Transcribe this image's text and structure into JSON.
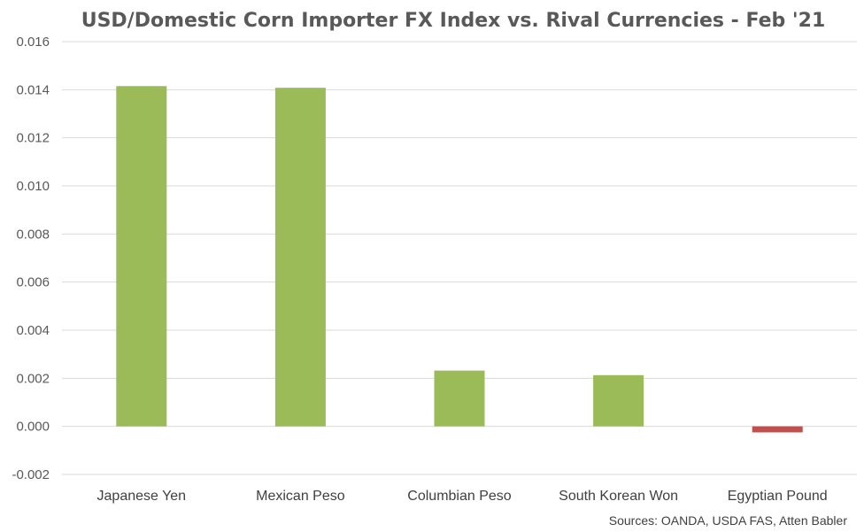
{
  "chart_data": {
    "type": "bar",
    "title": "USD/Domestic Corn Importer FX Index vs. Rival Currencies - Feb '21",
    "categories": [
      "Japanese Yen",
      "Mexican Peso",
      "Columbian Peso",
      "South Korean Won",
      "Egyptian Pound"
    ],
    "values": [
      0.01415,
      0.01408,
      0.00232,
      0.00213,
      -0.00025
    ],
    "ylim": [
      -0.002,
      0.016
    ],
    "yticks": [
      "0.016",
      "0.014",
      "0.012",
      "0.010",
      "0.008",
      "0.006",
      "0.004",
      "0.002",
      "0.000",
      "-0.002"
    ],
    "grid": true,
    "colors": {
      "positive": "#9bbb59",
      "negative": "#c0504d"
    },
    "source": "Sources: OANDA, USDA FAS, Atten Babler"
  }
}
